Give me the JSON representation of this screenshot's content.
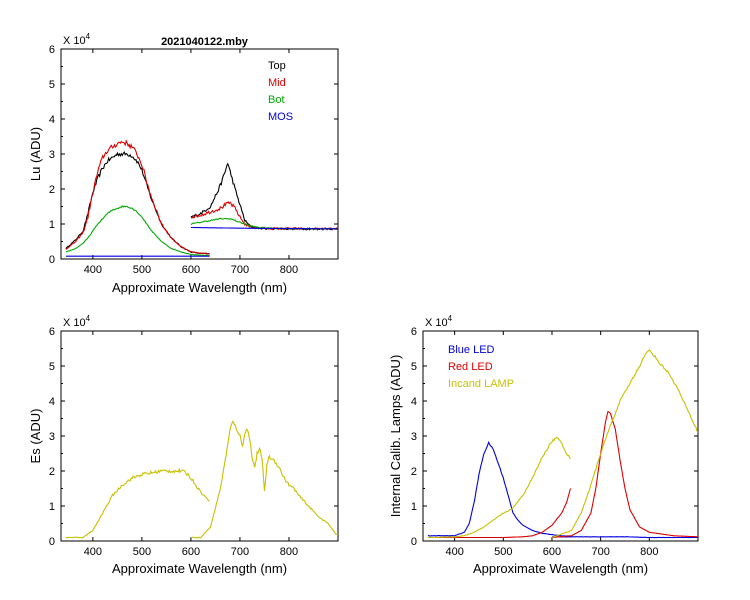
{
  "chart_data": [
    {
      "id": "lu",
      "type": "line",
      "title": "2021040122.mby",
      "xlabel": "Approximate Wavelength (nm)",
      "ylabel": "Lu (ADU)",
      "exponent_label": "X 10",
      "exponent": "4",
      "xlim": [
        335,
        900
      ],
      "ylim": [
        0,
        6
      ],
      "xticks": [
        "400",
        "500",
        "600",
        "700",
        "800"
      ],
      "yticks": [
        "0",
        "1",
        "2",
        "3",
        "4",
        "5",
        "6"
      ],
      "legend_position": "top-right",
      "series": [
        {
          "name": "Top",
          "color": "#000000",
          "noise": 0.06,
          "x": [
            345,
            365,
            380,
            390,
            400,
            410,
            420,
            430,
            440,
            450,
            460,
            470,
            480,
            490,
            500,
            510,
            520,
            540,
            560,
            580,
            600,
            620,
            638,
            600,
            610,
            620,
            640,
            650,
            660,
            670,
            675,
            680,
            690,
            700,
            710,
            720,
            730,
            740,
            760,
            800,
            850,
            900
          ],
          "y": [
            0.3,
            0.55,
            0.8,
            1.3,
            1.9,
            2.3,
            2.6,
            2.8,
            2.9,
            3.0,
            3.0,
            3.0,
            2.95,
            2.8,
            2.55,
            2.1,
            1.7,
            1.0,
            0.6,
            0.35,
            0.2,
            0.16,
            0.15,
            1.2,
            1.25,
            1.3,
            1.5,
            1.8,
            2.1,
            2.5,
            2.75,
            2.5,
            2.0,
            1.55,
            1.1,
            0.95,
            0.9,
            0.88,
            0.87,
            0.86,
            0.86,
            0.86
          ]
        },
        {
          "name": "Mid",
          "color": "#dd0000",
          "noise": 0.07,
          "x": [
            345,
            365,
            380,
            390,
            400,
            410,
            420,
            430,
            440,
            450,
            460,
            470,
            480,
            490,
            500,
            510,
            520,
            540,
            560,
            580,
            600,
            620,
            638,
            600,
            620,
            640,
            660,
            670,
            680,
            690,
            700,
            710,
            720,
            730,
            740,
            760,
            800,
            850,
            900
          ],
          "y": [
            0.28,
            0.5,
            0.75,
            1.2,
            1.9,
            2.5,
            2.9,
            3.1,
            3.2,
            3.3,
            3.35,
            3.3,
            3.2,
            3.0,
            2.7,
            2.2,
            1.75,
            1.0,
            0.6,
            0.35,
            0.2,
            0.16,
            0.15,
            1.2,
            1.25,
            1.35,
            1.45,
            1.55,
            1.6,
            1.45,
            1.2,
            1.0,
            0.92,
            0.9,
            0.88,
            0.87,
            0.87,
            0.86,
            0.86
          ]
        },
        {
          "name": "Bot",
          "color": "#00aa00",
          "noise": 0.03,
          "x": [
            345,
            365,
            380,
            390,
            400,
            410,
            420,
            430,
            440,
            450,
            460,
            470,
            480,
            490,
            500,
            510,
            520,
            540,
            560,
            580,
            600,
            620,
            638,
            600,
            620,
            640,
            660,
            680,
            700,
            720,
            740,
            760,
            800,
            850,
            900
          ],
          "y": [
            0.2,
            0.3,
            0.45,
            0.6,
            0.8,
            1.0,
            1.15,
            1.3,
            1.4,
            1.45,
            1.5,
            1.5,
            1.45,
            1.35,
            1.2,
            1.0,
            0.8,
            0.5,
            0.3,
            0.2,
            0.13,
            0.11,
            0.1,
            1.0,
            1.05,
            1.1,
            1.15,
            1.15,
            1.05,
            0.95,
            0.9,
            0.88,
            0.87,
            0.86,
            0.86
          ]
        },
        {
          "name": "MOS",
          "color": "#0000dd",
          "noise": 0.0,
          "x": [
            345,
            400,
            500,
            600,
            638,
            600,
            700,
            800,
            900
          ],
          "y": [
            0.08,
            0.08,
            0.08,
            0.08,
            0.08,
            0.9,
            0.88,
            0.87,
            0.86
          ]
        }
      ]
    },
    {
      "id": "es",
      "type": "line",
      "title": "",
      "xlabel": "Approximate Wavelength (nm)",
      "ylabel": "Es  (ADU)",
      "exponent_label": "X 10",
      "exponent": "4",
      "xlim": [
        335,
        900
      ],
      "ylim": [
        0,
        6
      ],
      "xticks": [
        "400",
        "500",
        "600",
        "700",
        "800"
      ],
      "yticks": [
        "0",
        "1",
        "2",
        "3",
        "4",
        "5",
        "6"
      ],
      "legend_position": "none",
      "series": [
        {
          "name": "",
          "color": "#c8c000",
          "noise": 0.05,
          "x": [
            345,
            380,
            400,
            420,
            440,
            460,
            480,
            500,
            520,
            540,
            560,
            580,
            590,
            600,
            610,
            620,
            630,
            638,
            600,
            620,
            640,
            660,
            670,
            680,
            685,
            690,
            700,
            705,
            710,
            715,
            720,
            725,
            730,
            735,
            740,
            745,
            750,
            755,
            760,
            770,
            780,
            790,
            800,
            810,
            820,
            840,
            860,
            880,
            895,
            900
          ],
          "y": [
            0.1,
            0.1,
            0.3,
            0.8,
            1.3,
            1.6,
            1.8,
            1.9,
            1.95,
            2.0,
            2.0,
            2.0,
            1.95,
            1.8,
            1.6,
            1.4,
            1.25,
            1.15,
            0.1,
            0.1,
            0.4,
            1.5,
            2.3,
            3.2,
            3.4,
            3.3,
            3.0,
            2.7,
            3.1,
            3.2,
            2.9,
            2.4,
            2.1,
            2.5,
            2.6,
            2.4,
            1.4,
            2.2,
            2.4,
            2.3,
            2.1,
            1.8,
            1.6,
            1.5,
            1.3,
            1.0,
            0.7,
            0.5,
            0.2,
            0.2
          ]
        }
      ]
    },
    {
      "id": "lamps",
      "type": "line",
      "title": "",
      "xlabel": "Approximate Wavelength (nm)",
      "ylabel": "Internal Calib. Lamps  (ADU)",
      "exponent_label": "X 10",
      "exponent": "4",
      "xlim": [
        335,
        900
      ],
      "ylim": [
        0,
        6
      ],
      "xticks": [
        "400",
        "500",
        "600",
        "700",
        "800"
      ],
      "yticks": [
        "0",
        "1",
        "2",
        "3",
        "4",
        "5",
        "6"
      ],
      "legend_position": "top-left",
      "series": [
        {
          "name": "Blue LED",
          "color": "#0000dd",
          "noise": 0.02,
          "x": [
            345,
            380,
            400,
            420,
            430,
            440,
            450,
            460,
            470,
            480,
            490,
            500,
            510,
            520,
            530,
            540,
            560,
            580,
            600,
            620,
            638,
            600,
            650,
            700,
            750,
            800,
            850,
            900
          ],
          "y": [
            0.15,
            0.15,
            0.15,
            0.25,
            0.5,
            1.1,
            1.9,
            2.5,
            2.8,
            2.6,
            2.2,
            1.8,
            1.3,
            0.8,
            0.6,
            0.45,
            0.3,
            0.22,
            0.18,
            0.15,
            0.14,
            0.12,
            0.12,
            0.12,
            0.12,
            0.1,
            0.1,
            0.1
          ]
        },
        {
          "name": "Red LED",
          "color": "#dd0000",
          "noise": 0.0,
          "x": [
            345,
            400,
            450,
            500,
            540,
            560,
            580,
            600,
            620,
            630,
            638,
            600,
            640,
            660,
            680,
            690,
            700,
            710,
            715,
            720,
            730,
            740,
            750,
            760,
            780,
            800,
            850,
            900
          ],
          "y": [
            0.1,
            0.1,
            0.1,
            0.1,
            0.12,
            0.15,
            0.25,
            0.45,
            0.8,
            1.1,
            1.5,
            0.1,
            0.15,
            0.3,
            0.8,
            1.5,
            2.5,
            3.4,
            3.7,
            3.65,
            3.2,
            2.3,
            1.5,
            0.9,
            0.4,
            0.25,
            0.15,
            0.12
          ]
        },
        {
          "name": "Incand LAMP",
          "color": "#c8c000",
          "noise": 0.03,
          "x": [
            345,
            400,
            420,
            440,
            460,
            480,
            500,
            510,
            520,
            540,
            560,
            580,
            600,
            610,
            620,
            630,
            638,
            600,
            640,
            660,
            680,
            700,
            720,
            740,
            760,
            780,
            790,
            800,
            810,
            820,
            840,
            860,
            880,
            900
          ],
          "y": [
            0.1,
            0.12,
            0.15,
            0.25,
            0.4,
            0.6,
            0.8,
            0.85,
            0.95,
            1.3,
            1.8,
            2.4,
            2.85,
            2.95,
            2.8,
            2.5,
            2.35,
            0.1,
            0.3,
            0.8,
            1.6,
            2.5,
            3.3,
            4.0,
            4.5,
            5.0,
            5.3,
            5.45,
            5.3,
            5.1,
            4.8,
            4.3,
            3.7,
            3.1
          ]
        }
      ]
    }
  ]
}
